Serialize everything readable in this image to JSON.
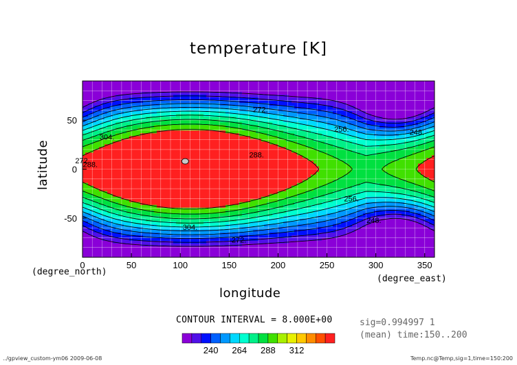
{
  "chart_data": {
    "type": "heatmap",
    "subtype": "filled-contour",
    "title": "temperature [K]",
    "xlabel": "longitude",
    "ylabel": "latitude",
    "x_unit": "(degree_east)",
    "y_unit": "(degree_north)",
    "xlim": [
      0,
      360
    ],
    "ylim": [
      -90,
      90
    ],
    "x_ticks": [
      0,
      50,
      100,
      150,
      200,
      250,
      300,
      350
    ],
    "y_ticks": [
      -50,
      0,
      50
    ],
    "grid": true,
    "contour_levels": [
      240,
      248,
      256,
      264,
      272,
      280,
      288,
      296,
      304,
      312
    ],
    "contour_labels": [
      {
        "value": "304.",
        "lon": 25,
        "lat": 30
      },
      {
        "value": "304.",
        "lon": 110,
        "lat": -62
      },
      {
        "value": "288.",
        "lon": 8,
        "lat": 2
      },
      {
        "value": "288.",
        "lon": 178,
        "lat": 12
      },
      {
        "value": "272.",
        "lon": 182,
        "lat": 58
      },
      {
        "value": "272.",
        "lon": 160,
        "lat": -75
      },
      {
        "value": "256.",
        "lon": 265,
        "lat": 38
      },
      {
        "value": "256.",
        "lon": 275,
        "lat": -33
      },
      {
        "value": "248.",
        "lon": 342,
        "lat": 35
      },
      {
        "value": "248.",
        "lon": 298,
        "lat": -55
      },
      {
        "value": "272",
        "lon": -1,
        "lat": 6
      }
    ],
    "data_summary": {
      "maximum": {
        "lon": 105,
        "lat": 8,
        "value_above": 312
      },
      "minima": [
        {
          "lon": 325,
          "lat": 60,
          "value_below": 240
        },
        {
          "lon": 325,
          "lat": -58,
          "value_below": 240
        }
      ]
    },
    "colorbar": {
      "ticks": [
        "240",
        "264",
        "288",
        "312"
      ],
      "colors": [
        "#8a00d8",
        "#5010e8",
        "#0010ff",
        "#0060ff",
        "#0098ff",
        "#00d8ff",
        "#00ffd0",
        "#00f088",
        "#00e040",
        "#40e000",
        "#a8f000",
        "#e8f000",
        "#ffc800",
        "#ff8c00",
        "#ff5000",
        "#ff2020"
      ]
    }
  },
  "labels": {
    "title": "temperature [K]",
    "xlabel": "longitude",
    "ylabel": "latitude",
    "x_unit": "(degree_east)",
    "y_unit": "(degree_north)",
    "contour_interval": "CONTOUR INTERVAL = 8.000E+00",
    "sig": "sig=0.994997 1",
    "mean": "(mean) time:150..200",
    "footer_left": "../gpview_custom-ym06  2009-06-08",
    "footer_right": "Temp.nc@Temp,sig=1,time=150:200"
  }
}
